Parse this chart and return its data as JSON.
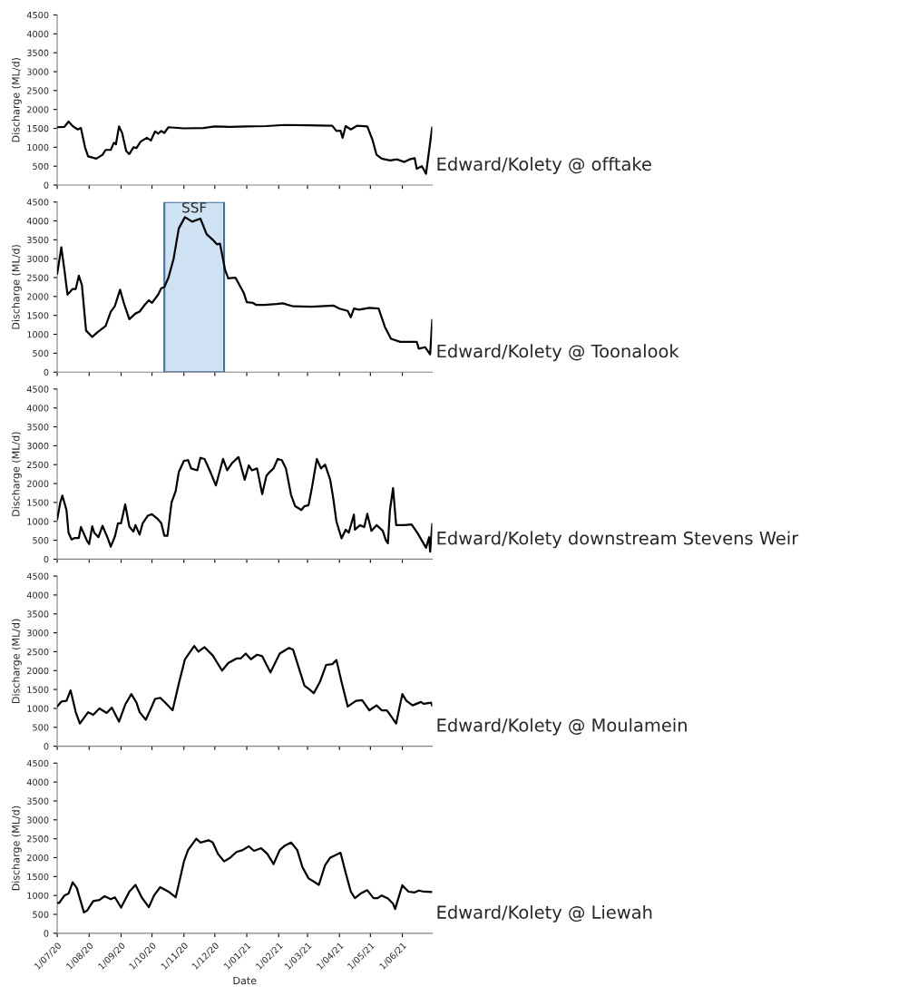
{
  "chart_data": [
    {
      "type": "line",
      "title": "Edward/Kolety @ offtake",
      "ylabel": "Discharge (ML/d)",
      "ylim": [
        0,
        4500
      ],
      "yticks": [
        0,
        500,
        1000,
        1500,
        2000,
        2500,
        3000,
        3500,
        4000,
        4500
      ],
      "xlim": [
        "2020-07-01",
        "2021-06-30"
      ],
      "xticks": [
        {
          "value": "2020-07-01",
          "label": null
        },
        {
          "value": "2020-08-01",
          "label": null
        },
        {
          "value": "2020-09-01",
          "label": null
        },
        {
          "value": "2020-10-01",
          "label": null
        },
        {
          "value": "2020-11-01",
          "label": null
        },
        {
          "value": "2020-12-01",
          "label": null
        },
        {
          "value": "2021-01-01",
          "label": null
        },
        {
          "value": "2021-02-01",
          "label": null
        },
        {
          "value": "2021-03-01",
          "label": null
        },
        {
          "value": "2021-04-01",
          "label": null
        },
        {
          "value": "2021-05-01",
          "label": null
        },
        {
          "value": "2021-06-01",
          "label": null
        }
      ],
      "tick_labels": "y",
      "grid": false,
      "legend": false,
      "series": [
        {
          "color": "#000000",
          "x": [
            "2020-07-01",
            "2020-07-08",
            "2020-07-12",
            "2020-07-16",
            "2020-07-21",
            "2020-07-24",
            "2020-07-28",
            "2020-07-31",
            "2020-08-08",
            "2020-08-14",
            "2020-08-17",
            "2020-08-22",
            "2020-08-25",
            "2020-08-27",
            "2020-08-30",
            "2020-09-02",
            "2020-09-06",
            "2020-09-09",
            "2020-09-13",
            "2020-09-16",
            "2020-09-20",
            "2020-09-26",
            "2020-09-30",
            "2020-10-04",
            "2020-10-07",
            "2020-10-10",
            "2020-10-13",
            "2020-10-17",
            "2020-11-01",
            "2020-11-20",
            "2020-12-01",
            "2020-12-15",
            "2021-01-01",
            "2021-01-20",
            "2021-02-07",
            "2021-03-01",
            "2021-03-25",
            "2021-03-29",
            "2021-04-02",
            "2021-04-04",
            "2021-04-07",
            "2021-04-12",
            "2021-04-18",
            "2021-04-28",
            "2021-05-03",
            "2021-05-07",
            "2021-05-12",
            "2021-05-20",
            "2021-05-27",
            "2021-06-03",
            "2021-06-08",
            "2021-06-13",
            "2021-06-15",
            "2021-06-20",
            "2021-06-24",
            "2021-06-30"
          ],
          "values": [
            1530,
            1540,
            1680,
            1560,
            1470,
            1510,
            1000,
            760,
            700,
            800,
            930,
            930,
            1120,
            1080,
            1550,
            1380,
            900,
            820,
            1000,
            980,
            1150,
            1250,
            1180,
            1420,
            1360,
            1430,
            1380,
            1530,
            1500,
            1510,
            1550,
            1540,
            1550,
            1560,
            1590,
            1580,
            1570,
            1430,
            1440,
            1250,
            1560,
            1470,
            1570,
            1550,
            1200,
            800,
            700,
            650,
            680,
            610,
            680,
            710,
            430,
            500,
            300,
            1530
          ]
        }
      ]
    },
    {
      "type": "line",
      "title": "Edward/Kolety @ Toonalook",
      "ylabel": "Discharge (ML/d)",
      "ylim": [
        0,
        4500
      ],
      "yticks": [
        0,
        500,
        1000,
        1500,
        2000,
        2500,
        3000,
        3500,
        4000,
        4500
      ],
      "xlim": [
        "2020-07-01",
        "2021-06-30"
      ],
      "xticks": [
        {
          "value": "2020-07-01",
          "label": null
        },
        {
          "value": "2020-08-01",
          "label": null
        },
        {
          "value": "2020-09-01",
          "label": null
        },
        {
          "value": "2020-10-01",
          "label": null
        },
        {
          "value": "2020-11-01",
          "label": null
        },
        {
          "value": "2020-12-01",
          "label": null
        },
        {
          "value": "2021-01-01",
          "label": null
        },
        {
          "value": "2021-02-01",
          "label": null
        },
        {
          "value": "2021-03-01",
          "label": null
        },
        {
          "value": "2021-04-01",
          "label": null
        },
        {
          "value": "2021-05-01",
          "label": null
        },
        {
          "value": "2021-06-01",
          "label": null
        }
      ],
      "tick_labels": "y",
      "grid": false,
      "legend": false,
      "bands": [
        {
          "axis": "x",
          "from": "2020-10-13",
          "to": "2020-12-10",
          "label": "SSF",
          "color": "#cfe2f3"
        }
      ],
      "series": [
        {
          "color": "#000000",
          "x": [
            "2020-07-01",
            "2020-07-05",
            "2020-07-08",
            "2020-07-11",
            "2020-07-16",
            "2020-07-19",
            "2020-07-22",
            "2020-07-25",
            "2020-07-29",
            "2020-08-04",
            "2020-08-09",
            "2020-08-17",
            "2020-08-22",
            "2020-08-26",
            "2020-08-31",
            "2020-09-04",
            "2020-09-09",
            "2020-09-15",
            "2020-09-19",
            "2020-09-24",
            "2020-09-28",
            "2020-10-01",
            "2020-10-07",
            "2020-10-10",
            "2020-10-13",
            "2020-10-17",
            "2020-10-22",
            "2020-10-27",
            "2020-11-02",
            "2020-11-09",
            "2020-11-17",
            "2020-11-23",
            "2020-11-29",
            "2020-12-03",
            "2020-12-06",
            "2020-12-11",
            "2020-12-14",
            "2020-12-21",
            "2020-12-29",
            "2021-01-01",
            "2021-01-07",
            "2021-01-10",
            "2021-01-18",
            "2021-01-30",
            "2021-02-05",
            "2021-02-15",
            "2021-03-05",
            "2021-03-26",
            "2021-04-01",
            "2021-04-09",
            "2021-04-12",
            "2021-04-15",
            "2021-04-20",
            "2021-04-30",
            "2021-05-09",
            "2021-05-15",
            "2021-05-21",
            "2021-05-30",
            "2021-06-08",
            "2021-06-15",
            "2021-06-17",
            "2021-06-23",
            "2021-06-28",
            "2021-06-30"
          ],
          "values": [
            2600,
            3300,
            2700,
            2050,
            2200,
            2200,
            2550,
            2300,
            1100,
            930,
            1050,
            1220,
            1600,
            1750,
            2180,
            1800,
            1400,
            1550,
            1600,
            1780,
            1900,
            1830,
            2050,
            2220,
            2250,
            2500,
            3000,
            3800,
            4100,
            3980,
            4060,
            3650,
            3500,
            3380,
            3400,
            2700,
            2480,
            2500,
            2100,
            1850,
            1830,
            1780,
            1780,
            1800,
            1820,
            1740,
            1730,
            1760,
            1680,
            1620,
            1450,
            1680,
            1650,
            1700,
            1680,
            1200,
            880,
            800,
            800,
            800,
            620,
            660,
            470,
            1380
          ]
        }
      ]
    },
    {
      "type": "line",
      "title": "Edward/Kolety downstream Stevens Weir",
      "ylabel": "Discharge (ML/d)",
      "ylim": [
        0,
        4500
      ],
      "yticks": [
        0,
        500,
        1000,
        1500,
        2000,
        2500,
        3000,
        3500,
        4000,
        4500
      ],
      "xlim": [
        "2020-07-01",
        "2021-06-30"
      ],
      "xticks": [
        {
          "value": "2020-07-01",
          "label": null
        },
        {
          "value": "2020-08-01",
          "label": null
        },
        {
          "value": "2020-09-01",
          "label": null
        },
        {
          "value": "2020-10-01",
          "label": null
        },
        {
          "value": "2020-11-01",
          "label": null
        },
        {
          "value": "2020-12-01",
          "label": null
        },
        {
          "value": "2021-01-01",
          "label": null
        },
        {
          "value": "2021-02-01",
          "label": null
        },
        {
          "value": "2021-03-01",
          "label": null
        },
        {
          "value": "2021-04-01",
          "label": null
        },
        {
          "value": "2021-05-01",
          "label": null
        },
        {
          "value": "2021-06-01",
          "label": null
        }
      ],
      "tick_labels": "y",
      "grid": false,
      "legend": false,
      "series": [
        {
          "color": "#000000",
          "x": [
            "2020-07-01",
            "2020-07-04",
            "2020-07-06",
            "2020-07-10",
            "2020-07-12",
            "2020-07-15",
            "2020-07-18",
            "2020-07-22",
            "2020-07-24",
            "2020-07-30",
            "2020-08-01",
            "2020-08-04",
            "2020-08-06",
            "2020-08-10",
            "2020-08-14",
            "2020-08-19",
            "2020-08-22",
            "2020-08-26",
            "2020-08-29",
            "2020-09-01",
            "2020-09-05",
            "2020-09-09",
            "2020-09-13",
            "2020-09-15",
            "2020-09-19",
            "2020-09-22",
            "2020-09-27",
            "2020-10-01",
            "2020-10-07",
            "2020-10-10",
            "2020-10-13",
            "2020-10-16",
            "2020-10-20",
            "2020-10-24",
            "2020-10-27",
            "2020-11-01",
            "2020-11-05",
            "2020-11-08",
            "2020-11-14",
            "2020-11-17",
            "2020-11-21",
            "2020-11-26",
            "2020-12-02",
            "2020-12-06",
            "2020-12-09",
            "2020-12-13",
            "2020-12-18",
            "2020-12-24",
            "2020-12-30",
            "2021-01-03",
            "2021-01-06",
            "2021-01-11",
            "2021-01-16",
            "2021-01-20",
            "2021-01-23",
            "2021-01-27",
            "2021-01-31",
            "2021-02-04",
            "2021-02-08",
            "2021-02-13",
            "2021-02-17",
            "2021-02-23",
            "2021-02-26",
            "2021-03-02",
            "2021-03-05",
            "2021-03-10",
            "2021-03-14",
            "2021-03-18",
            "2021-03-23",
            "2021-03-26",
            "2021-03-29",
            "2021-04-03",
            "2021-04-07",
            "2021-04-10",
            "2021-04-15",
            "2021-04-16",
            "2021-04-21",
            "2021-04-25",
            "2021-04-28",
            "2021-05-02",
            "2021-05-07",
            "2021-05-13",
            "2021-05-16",
            "2021-05-18",
            "2021-05-20",
            "2021-05-23",
            "2021-05-26",
            "2021-06-03",
            "2021-06-10",
            "2021-06-16",
            "2021-06-24",
            "2021-06-27",
            "2021-06-28",
            "2021-06-30"
          ],
          "values": [
            1050,
            1500,
            1680,
            1300,
            700,
            520,
            560,
            560,
            850,
            480,
            400,
            870,
            700,
            580,
            880,
            560,
            330,
            600,
            950,
            950,
            1450,
            860,
            730,
            900,
            650,
            950,
            1150,
            1190,
            1050,
            950,
            620,
            620,
            1500,
            1800,
            2300,
            2600,
            2620,
            2400,
            2350,
            2680,
            2650,
            2350,
            1950,
            2350,
            2650,
            2350,
            2550,
            2700,
            2100,
            2480,
            2350,
            2400,
            1720,
            2200,
            2300,
            2400,
            2650,
            2620,
            2400,
            1700,
            1400,
            1300,
            1400,
            1430,
            1850,
            2650,
            2400,
            2500,
            2100,
            1600,
            1000,
            550,
            780,
            700,
            1180,
            780,
            900,
            850,
            1200,
            750,
            900,
            750,
            500,
            420,
            1300,
            1880,
            900,
            900,
            920,
            680,
            300,
            580,
            200,
            930
          ]
        }
      ]
    },
    {
      "type": "line",
      "title": "Edward/Kolety @ Moulamein",
      "ylabel": "Discharge (ML/d)",
      "ylim": [
        0,
        4500
      ],
      "yticks": [
        0,
        500,
        1000,
        1500,
        2000,
        2500,
        3000,
        3500,
        4000,
        4500
      ],
      "xlim": [
        "2020-07-01",
        "2021-06-30"
      ],
      "xticks": [
        {
          "value": "2020-07-01",
          "label": null
        },
        {
          "value": "2020-08-01",
          "label": null
        },
        {
          "value": "2020-09-01",
          "label": null
        },
        {
          "value": "2020-10-01",
          "label": null
        },
        {
          "value": "2020-11-01",
          "label": null
        },
        {
          "value": "2020-12-01",
          "label": null
        },
        {
          "value": "2021-01-01",
          "label": null
        },
        {
          "value": "2021-02-01",
          "label": null
        },
        {
          "value": "2021-03-01",
          "label": null
        },
        {
          "value": "2021-04-01",
          "label": null
        },
        {
          "value": "2021-05-01",
          "label": null
        },
        {
          "value": "2021-06-01",
          "label": null
        }
      ],
      "tick_labels": "y",
      "grid": false,
      "legend": false,
      "series": [
        {
          "color": "#000000",
          "x": [
            "2020-07-01",
            "2020-07-05",
            "2020-07-10",
            "2020-07-14",
            "2020-07-19",
            "2020-07-23",
            "2020-07-31",
            "2020-08-05",
            "2020-08-11",
            "2020-08-18",
            "2020-08-23",
            "2020-08-30",
            "2020-09-05",
            "2020-09-11",
            "2020-09-16",
            "2020-09-19",
            "2020-09-25",
            "2020-09-30",
            "2020-10-04",
            "2020-10-09",
            "2020-10-14",
            "2020-10-21",
            "2020-10-27",
            "2020-11-02",
            "2020-11-11",
            "2020-11-15",
            "2020-11-21",
            "2020-11-29",
            "2020-12-08",
            "2020-12-14",
            "2020-12-22",
            "2020-12-26",
            "2020-12-31",
            "2021-01-05",
            "2021-01-11",
            "2021-01-16",
            "2021-01-24",
            "2021-02-02",
            "2021-02-11",
            "2021-02-15",
            "2021-02-26",
            "2021-03-03",
            "2021-03-07",
            "2021-03-13",
            "2021-03-19",
            "2021-03-25",
            "2021-03-29",
            "2021-04-03",
            "2021-04-09",
            "2021-04-17",
            "2021-04-23",
            "2021-04-30",
            "2021-05-07",
            "2021-05-12",
            "2021-05-17",
            "2021-05-21",
            "2021-05-26",
            "2021-06-01",
            "2021-06-05",
            "2021-06-11",
            "2021-06-19",
            "2021-06-22",
            "2021-06-29",
            "2021-06-30"
          ],
          "values": [
            1050,
            1180,
            1200,
            1480,
            900,
            600,
            900,
            830,
            1000,
            880,
            1020,
            650,
            1100,
            1380,
            1150,
            900,
            700,
            1000,
            1250,
            1280,
            1150,
            950,
            1650,
            2300,
            2650,
            2500,
            2620,
            2400,
            2000,
            2200,
            2320,
            2320,
            2450,
            2300,
            2420,
            2380,
            1950,
            2450,
            2600,
            2550,
            1600,
            1500,
            1400,
            1700,
            2150,
            2170,
            2280,
            1700,
            1050,
            1200,
            1220,
            950,
            1080,
            950,
            950,
            800,
            600,
            1380,
            1200,
            1080,
            1170,
            1120,
            1150,
            1070
          ]
        }
      ]
    },
    {
      "type": "line",
      "title": "Edward/Kolety @ Liewah",
      "xlabel": "Date",
      "ylabel": "Discharge (ML/d)",
      "ylim": [
        0,
        4500
      ],
      "yticks": [
        0,
        500,
        1000,
        1500,
        2000,
        2500,
        3000,
        3500,
        4000,
        4500
      ],
      "xlim": [
        "2020-07-01",
        "2021-06-30"
      ],
      "xticks": [
        {
          "value": "2020-07-01",
          "label": "1/07/20"
        },
        {
          "value": "2020-08-01",
          "label": "1/08/20"
        },
        {
          "value": "2020-09-01",
          "label": "1/09/20"
        },
        {
          "value": "2020-10-01",
          "label": "1/10/20"
        },
        {
          "value": "2020-11-01",
          "label": "1/11/20"
        },
        {
          "value": "2020-12-01",
          "label": "1/12/20"
        },
        {
          "value": "2021-01-01",
          "label": "1/01/21"
        },
        {
          "value": "2021-02-01",
          "label": "1/02/21"
        },
        {
          "value": "2021-03-01",
          "label": "1/03/21"
        },
        {
          "value": "2021-04-01",
          "label": "1/04/21"
        },
        {
          "value": "2021-05-01",
          "label": "1/05/21"
        },
        {
          "value": "2021-06-01",
          "label": "1/06/21"
        }
      ],
      "grid": false,
      "legend": false,
      "series": [
        {
          "color": "#000000",
          "x": [
            "2020-07-01",
            "2020-07-03",
            "2020-07-08",
            "2020-07-12",
            "2020-07-16",
            "2020-07-20",
            "2020-07-27",
            "2020-07-30",
            "2020-08-05",
            "2020-08-11",
            "2020-08-16",
            "2020-08-22",
            "2020-08-26",
            "2020-09-01",
            "2020-09-09",
            "2020-09-15",
            "2020-09-21",
            "2020-09-28",
            "2020-10-03",
            "2020-10-09",
            "2020-10-17",
            "2020-10-24",
            "2020-10-27",
            "2020-11-01",
            "2020-11-05",
            "2020-11-13",
            "2020-11-17",
            "2020-11-25",
            "2020-11-29",
            "2020-12-04",
            "2020-12-10",
            "2020-12-16",
            "2020-12-22",
            "2020-12-28",
            "2021-01-03",
            "2021-01-08",
            "2021-01-15",
            "2021-01-21",
            "2021-01-27",
            "2021-02-02",
            "2021-02-07",
            "2021-02-13",
            "2021-02-19",
            "2021-02-24",
            "2021-03-02",
            "2021-03-08",
            "2021-03-12",
            "2021-03-18",
            "2021-03-23",
            "2021-03-29",
            "2021-04-02",
            "2021-04-07",
            "2021-04-12",
            "2021-04-16",
            "2021-04-22",
            "2021-04-28",
            "2021-05-04",
            "2021-05-08",
            "2021-05-12",
            "2021-05-18",
            "2021-05-23",
            "2021-05-25",
            "2021-06-01",
            "2021-06-07",
            "2021-06-13",
            "2021-06-17",
            "2021-06-22",
            "2021-06-30"
          ],
          "values": [
            800,
            800,
            1000,
            1050,
            1350,
            1200,
            550,
            600,
            850,
            880,
            980,
            900,
            950,
            680,
            1100,
            1280,
            950,
            690,
            1000,
            1220,
            1100,
            950,
            1300,
            1900,
            2200,
            2500,
            2400,
            2460,
            2400,
            2100,
            1900,
            2000,
            2150,
            2200,
            2300,
            2180,
            2250,
            2100,
            1830,
            2200,
            2320,
            2400,
            2200,
            1750,
            1450,
            1350,
            1280,
            1800,
            2000,
            2080,
            2130,
            1600,
            1100,
            930,
            1060,
            1140,
            930,
            930,
            1000,
            920,
            780,
            640,
            1270,
            1100,
            1080,
            1130,
            1100,
            1090
          ]
        }
      ]
    }
  ]
}
